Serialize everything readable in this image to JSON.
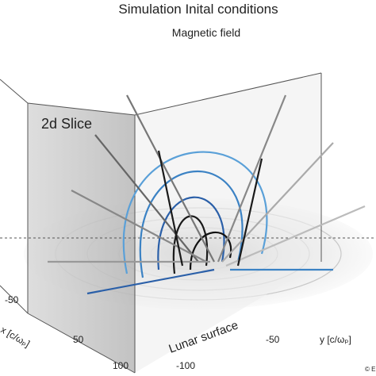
{
  "header": {
    "title": "Simulation Inital conditions",
    "subtitle": "Magnetic field"
  },
  "labels": {
    "slice": "2d Slice",
    "surface": "Lunar surface",
    "x_axis": "x [c/ωₚ]",
    "y_axis": "y [c/ωₚ]",
    "credit": "© E"
  },
  "x_ticks": [
    "-50",
    "50",
    "100"
  ],
  "y_ticks": [
    "-100",
    "-50"
  ]
}
